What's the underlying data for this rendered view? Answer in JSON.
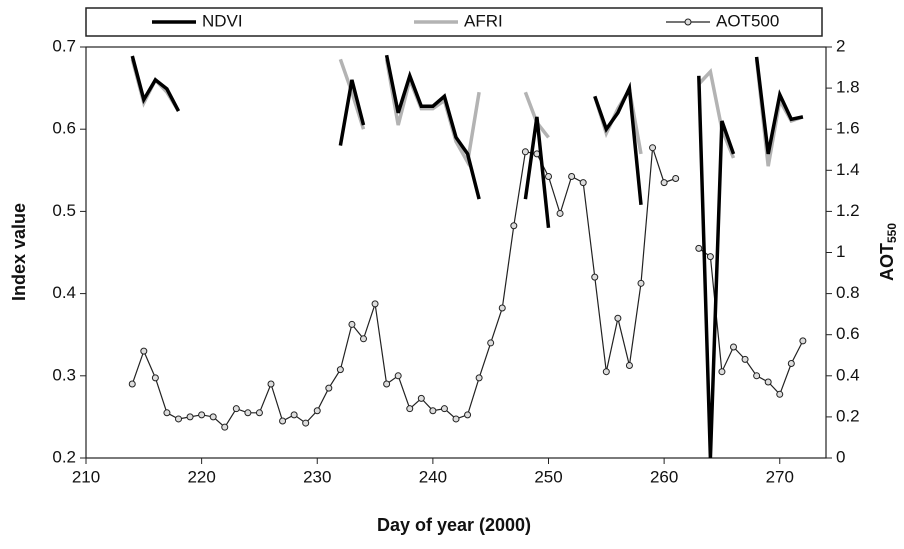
{
  "chart_data": {
    "type": "line",
    "x_label": "Day of year (2000)",
    "y_label": "Index value",
    "y2_label": "AOT",
    "y2_label_subscript": "550",
    "xlim": [
      210,
      274
    ],
    "xticks": [
      210,
      220,
      230,
      240,
      250,
      260,
      270
    ],
    "ylim": [
      0.2,
      0.7
    ],
    "yticks": [
      0.2,
      0.3,
      0.4,
      0.5,
      0.6,
      0.7
    ],
    "y2lim": [
      0,
      2
    ],
    "y2ticks": [
      0,
      0.2,
      0.4,
      0.6,
      0.8,
      1,
      1.2,
      1.4,
      1.6,
      1.8,
      2
    ],
    "legend": "top",
    "x": [
      214,
      215,
      216,
      217,
      218,
      219,
      220,
      221,
      222,
      223,
      224,
      225,
      226,
      227,
      228,
      229,
      230,
      231,
      232,
      233,
      234,
      235,
      236,
      237,
      238,
      239,
      240,
      241,
      242,
      243,
      244,
      245,
      246,
      247,
      248,
      249,
      250,
      251,
      252,
      253,
      254,
      255,
      256,
      257,
      258,
      259,
      260,
      261,
      262,
      263,
      264,
      265,
      266,
      267,
      268,
      269,
      270,
      271,
      272
    ],
    "series": [
      {
        "name": "NDVI",
        "color": "#000000",
        "width": 3.5,
        "axis": "y",
        "values": [
          0.689,
          0.636,
          0.66,
          0.649,
          0.622,
          null,
          null,
          null,
          null,
          null,
          null,
          null,
          null,
          null,
          null,
          null,
          null,
          null,
          0.58,
          0.66,
          0.605,
          null,
          0.69,
          0.62,
          0.665,
          0.628,
          0.628,
          0.64,
          0.59,
          0.57,
          0.515,
          null,
          null,
          null,
          0.515,
          0.615,
          0.48,
          null,
          null,
          null,
          0.64,
          0.6,
          0.62,
          0.65,
          0.508,
          null,
          null,
          null,
          null,
          0.665,
          0.2,
          0.61,
          0.57,
          null,
          0.688,
          0.57,
          0.642,
          0.612,
          0.615
        ]
      },
      {
        "name": "AFRI",
        "color": "#b3b3b3",
        "width": 3.5,
        "axis": "y",
        "values": [
          0.685,
          0.632,
          0.66,
          0.645,
          0.622,
          null,
          null,
          null,
          null,
          null,
          null,
          null,
          null,
          null,
          null,
          null,
          null,
          null,
          0.685,
          0.645,
          0.6,
          null,
          0.685,
          0.605,
          0.66,
          0.625,
          0.625,
          0.635,
          0.585,
          0.56,
          0.645,
          null,
          null,
          null,
          0.645,
          0.608,
          0.59,
          null,
          null,
          null,
          0.64,
          0.595,
          0.625,
          0.648,
          0.57,
          null,
          null,
          null,
          null,
          0.655,
          0.67,
          0.6,
          0.565,
          null,
          0.685,
          0.555,
          0.635,
          0.61,
          0.615
        ]
      },
      {
        "name": "AOT500",
        "color": "#222222",
        "width": 1.2,
        "axis": "y2",
        "marker": true,
        "values": [
          0.36,
          0.52,
          0.39,
          0.22,
          0.19,
          0.2,
          0.21,
          0.2,
          0.15,
          0.24,
          0.22,
          0.22,
          0.36,
          0.18,
          0.21,
          0.17,
          0.23,
          0.34,
          0.43,
          0.65,
          0.58,
          0.75,
          0.36,
          0.4,
          0.24,
          0.29,
          0.23,
          0.24,
          0.19,
          0.21,
          0.39,
          0.56,
          0.73,
          1.13,
          1.49,
          1.48,
          1.37,
          1.19,
          1.37,
          1.34,
          0.88,
          0.42,
          0.68,
          0.45,
          0.85,
          1.51,
          1.34,
          1.36,
          null,
          1.02,
          0.98,
          0.42,
          0.54,
          0.48,
          0.4,
          0.37,
          0.31,
          0.46,
          0.57
        ]
      }
    ]
  }
}
